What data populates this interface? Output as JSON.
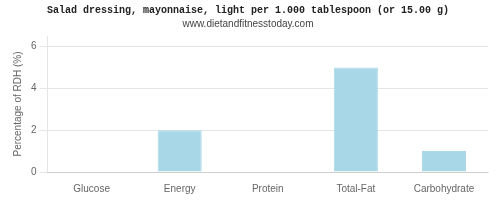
{
  "chart_data": {
    "type": "bar",
    "title": "Salad dressing, mayonnaise, light per 1.000 tablespoon (or 15.00 g)",
    "subtitle": "www.dietandfitnesstoday.com",
    "categories": [
      "Glucose",
      "Energy",
      "Protein",
      "Total-Fat",
      "Carbohydrate"
    ],
    "values": [
      0,
      2,
      0,
      5,
      1
    ],
    "color": "#a8d8e8",
    "ylabel": "Percentage of RDH (%)",
    "ylim": [
      0,
      6.5
    ],
    "yticks": [
      0,
      2,
      4,
      6
    ],
    "grid": true
  }
}
